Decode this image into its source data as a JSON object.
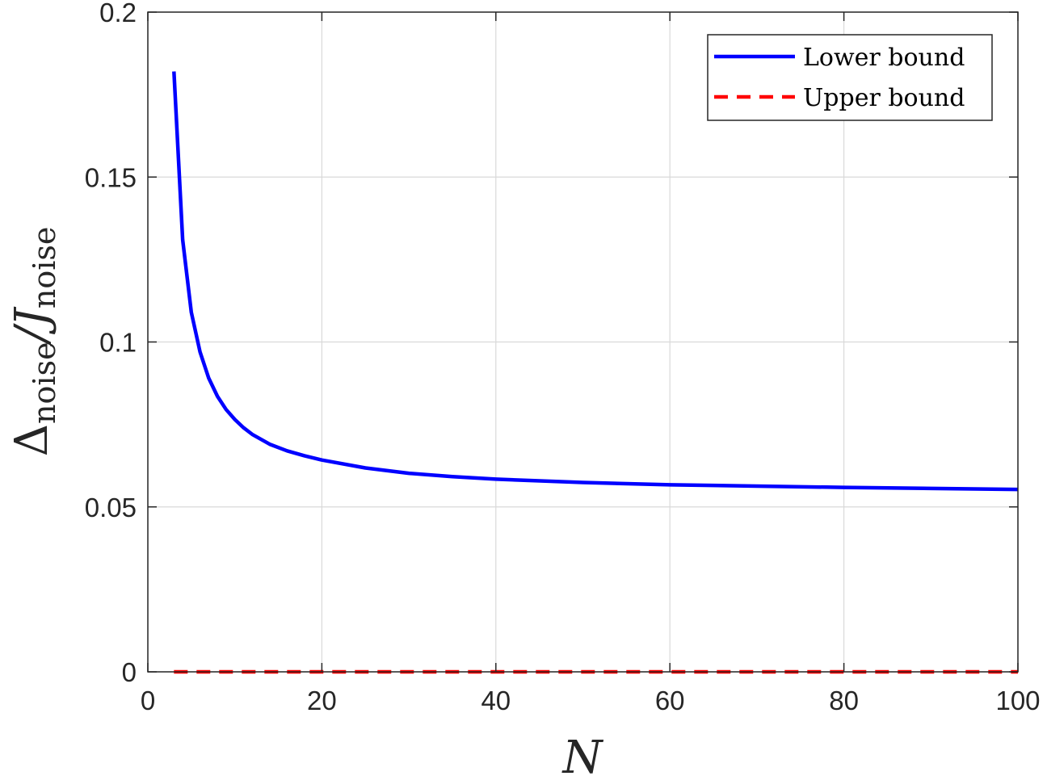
{
  "chart_data": {
    "type": "line",
    "xlabel": "N",
    "ylabel": {
      "symbol": "Δ",
      "sub1": "noise",
      "slash": "/",
      "j": "J",
      "sub2": "noise"
    },
    "xlim": [
      0,
      100
    ],
    "ylim": [
      0,
      0.2
    ],
    "xticks": [
      "0",
      "20",
      "40",
      "60",
      "80",
      "100"
    ],
    "yticks": [
      "0",
      "0.05",
      "0.1",
      "0.15",
      "0.2"
    ],
    "grid": true,
    "legend_position": "top-right",
    "series": [
      {
        "name": "Lower bound",
        "color": "#0000ff",
        "style": "solid",
        "x": [
          3,
          4,
          5,
          6,
          7,
          8,
          9,
          10,
          11,
          12,
          14,
          16,
          18,
          20,
          25,
          30,
          35,
          40,
          50,
          60,
          70,
          80,
          90,
          100
        ],
        "y": [
          0.182,
          0.131,
          0.109,
          0.097,
          0.089,
          0.0835,
          0.0795,
          0.0765,
          0.074,
          0.072,
          0.069,
          0.067,
          0.0655,
          0.0642,
          0.0618,
          0.0602,
          0.0592,
          0.0584,
          0.0574,
          0.0567,
          0.0563,
          0.0559,
          0.0556,
          0.0553
        ]
      },
      {
        "name": "Upper bound",
        "color": "#ff0000",
        "style": "dashed",
        "x": [
          3,
          100
        ],
        "y": [
          0,
          0
        ]
      }
    ]
  }
}
